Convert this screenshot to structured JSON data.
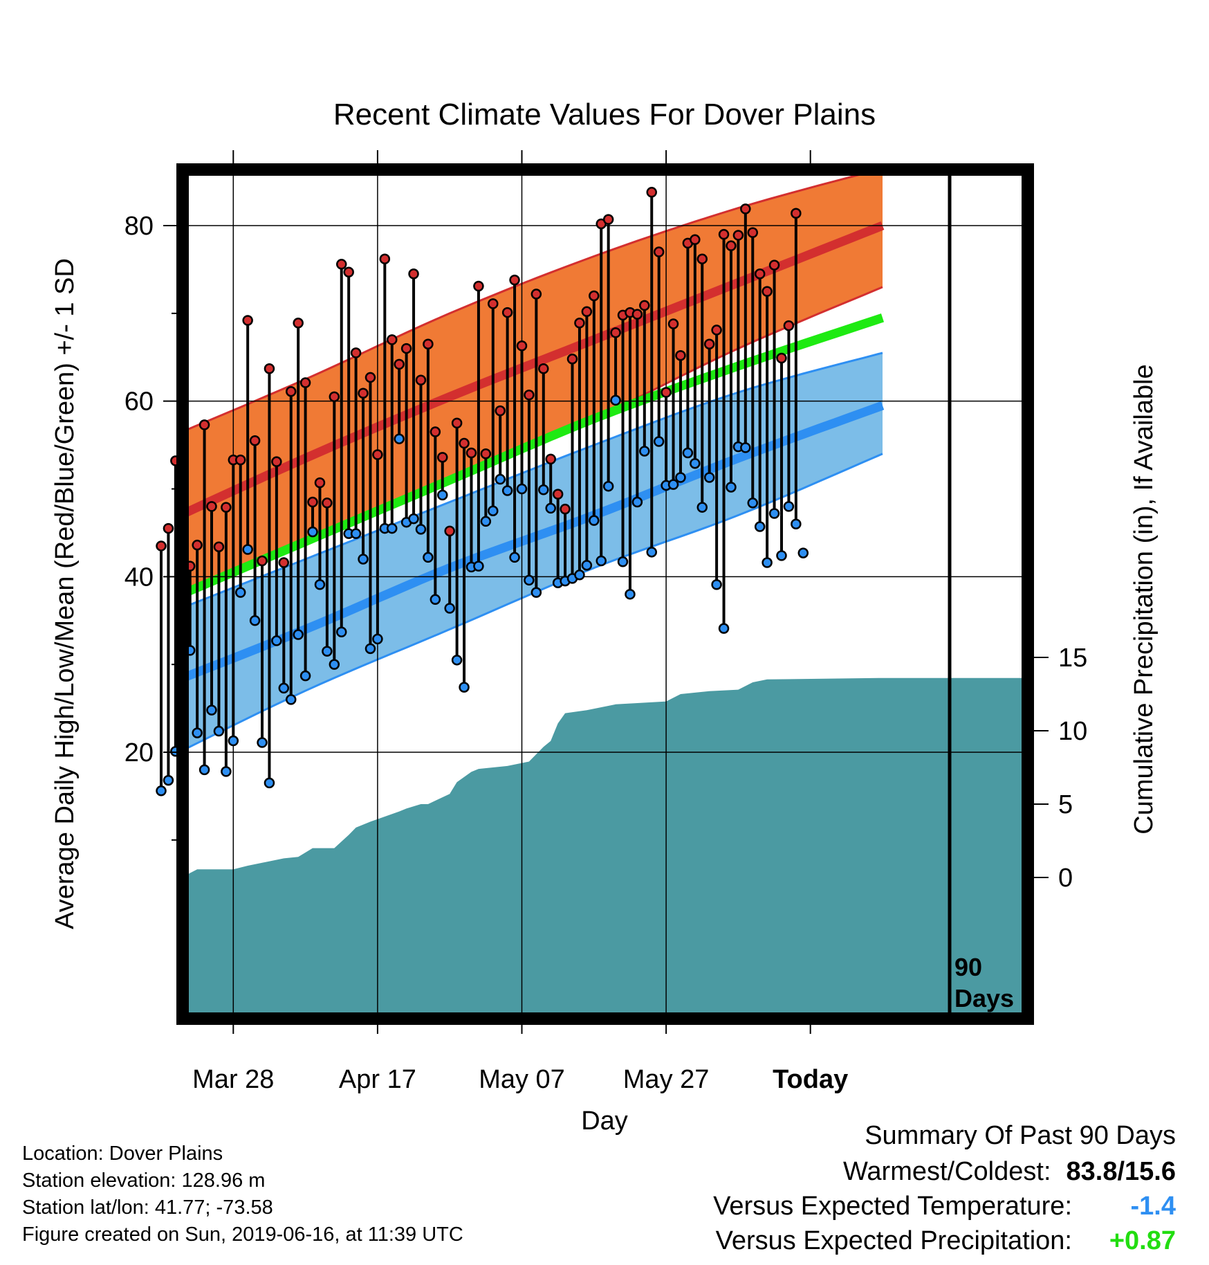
{
  "chart_data": {
    "type": "line",
    "title": "Recent Climate Values For Dover Plains",
    "xlabel": "Day",
    "ylabel": "Average Daily High/Low/Mean (Red/Blue/Green) +/- 1 SD",
    "y2label": "Cumulative Precipitation (in), If Available",
    "x_ticks": [
      "Mar 28",
      "Apr 17",
      "May 07",
      "May 27",
      "Today"
    ],
    "y_ticks": [
      "20",
      "40",
      "60",
      "80"
    ],
    "y2_ticks": [
      "0",
      "5",
      "10",
      "15"
    ],
    "y_range": [
      6,
      89
    ],
    "y2_range": [
      0,
      21
    ],
    "marker_label": [
      "90",
      "Days"
    ],
    "grid": true,
    "colors": {
      "high": "#d32f2f",
      "high_band": "#f07a35",
      "low": "#2e8ff2",
      "low_band": "#7cbde8",
      "mean": "#1eea12",
      "precip": "#4b9aa2"
    },
    "normal_high": {
      "x": [
        "2019-03-18",
        "2019-04-07",
        "2019-04-27",
        "2019-05-17",
        "2019-06-06",
        "2019-06-26"
      ],
      "mean": [
        46.0,
        53.5,
        60.5,
        67.0,
        73.5,
        80.0
      ],
      "lower": [
        37.0,
        44.0,
        51.0,
        58.0,
        66.0,
        73.0
      ],
      "upper": [
        55.5,
        62.5,
        70.0,
        76.5,
        82.0,
        86.5
      ]
    },
    "normal_mean": {
      "x": [
        "2019-03-18",
        "2019-04-07",
        "2019-04-27",
        "2019-05-17",
        "2019-06-06",
        "2019-06-26"
      ],
      "mean": [
        37.0,
        44.0,
        51.0,
        58.0,
        64.0,
        69.5
      ]
    },
    "normal_low": {
      "x": [
        "2019-03-18",
        "2019-04-07",
        "2019-04-27",
        "2019-05-17",
        "2019-06-06",
        "2019-06-26"
      ],
      "mean": [
        27.5,
        34.0,
        41.0,
        47.0,
        53.5,
        59.5
      ],
      "lower": [
        19.0,
        27.0,
        34.0,
        41.0,
        47.0,
        54.0
      ],
      "upper": [
        35.5,
        42.0,
        48.5,
        55.0,
        61.0,
        65.5
      ]
    },
    "daily": {
      "x": [
        "2019-03-18",
        "2019-03-19",
        "2019-03-20",
        "2019-03-21",
        "2019-03-22",
        "2019-03-23",
        "2019-03-24",
        "2019-03-25",
        "2019-03-26",
        "2019-03-27",
        "2019-03-28",
        "2019-03-29",
        "2019-03-30",
        "2019-03-31",
        "2019-04-01",
        "2019-04-02",
        "2019-04-03",
        "2019-04-04",
        "2019-04-05",
        "2019-04-06",
        "2019-04-07",
        "2019-04-08",
        "2019-04-09",
        "2019-04-10",
        "2019-04-11",
        "2019-04-12",
        "2019-04-13",
        "2019-04-14",
        "2019-04-15",
        "2019-04-16",
        "2019-04-17",
        "2019-04-18",
        "2019-04-19",
        "2019-04-20",
        "2019-04-21",
        "2019-04-22",
        "2019-04-23",
        "2019-04-24",
        "2019-04-25",
        "2019-04-26",
        "2019-04-27",
        "2019-04-28",
        "2019-04-29",
        "2019-04-30",
        "2019-05-01",
        "2019-05-02",
        "2019-05-03",
        "2019-05-04",
        "2019-05-05",
        "2019-05-06",
        "2019-05-07",
        "2019-05-08",
        "2019-05-09",
        "2019-05-10",
        "2019-05-11",
        "2019-05-12",
        "2019-05-13",
        "2019-05-14",
        "2019-05-15",
        "2019-05-16",
        "2019-05-17",
        "2019-05-18",
        "2019-05-19",
        "2019-05-20",
        "2019-05-21",
        "2019-05-22",
        "2019-05-23",
        "2019-05-24",
        "2019-05-25",
        "2019-05-26",
        "2019-05-27",
        "2019-05-28",
        "2019-05-29",
        "2019-05-30",
        "2019-05-31",
        "2019-06-01",
        "2019-06-02",
        "2019-06-03",
        "2019-06-04",
        "2019-06-05",
        "2019-06-06",
        "2019-06-07",
        "2019-06-08",
        "2019-06-09",
        "2019-06-10",
        "2019-06-11",
        "2019-06-12",
        "2019-06-13",
        "2019-06-14",
        "2019-06-15"
      ],
      "high": [
        43.5,
        45.5,
        53.2,
        43.7,
        41.2,
        43.6,
        57.3,
        48.0,
        43.4,
        47.9,
        53.3,
        53.3,
        69.2,
        55.5,
        41.8,
        63.7,
        53.1,
        41.6,
        61.1,
        68.9,
        62.1,
        48.5,
        50.7,
        48.4,
        60.5,
        75.6,
        74.7,
        65.5,
        60.9,
        62.7,
        53.9,
        76.2,
        67.0,
        64.2,
        66.0,
        74.5,
        62.4,
        66.5,
        56.5,
        53.6,
        45.2,
        57.5,
        55.2,
        54.1,
        73.1,
        54.0,
        71.1,
        58.9,
        70.1,
        73.8,
        66.3,
        60.7,
        72.2,
        63.7,
        53.4,
        49.4,
        47.7,
        64.8,
        68.9,
        70.2,
        72.0,
        80.2,
        80.7,
        67.8,
        69.8,
        70.1,
        69.9,
        70.9,
        83.8,
        77.0,
        61.0,
        68.8,
        65.2,
        78.0,
        78.4,
        76.2,
        66.5,
        68.1,
        79.0,
        77.7,
        78.9,
        81.9,
        79.2,
        74.5,
        72.5,
        75.5,
        64.9,
        68.6,
        81.4,
        null
      ],
      "low": [
        15.6,
        16.8,
        20.1,
        31.2,
        31.6,
        22.2,
        18.0,
        24.8,
        22.4,
        17.8,
        21.3,
        38.2,
        43.1,
        35.0,
        21.1,
        16.5,
        32.7,
        27.3,
        26.0,
        33.4,
        28.7,
        45.1,
        39.1,
        31.5,
        30.0,
        33.7,
        44.9,
        44.9,
        42.0,
        31.8,
        32.9,
        45.5,
        45.5,
        55.7,
        46.2,
        46.6,
        45.4,
        42.2,
        37.4,
        49.3,
        36.4,
        30.5,
        27.4,
        41.1,
        41.2,
        46.3,
        47.5,
        51.1,
        49.8,
        42.2,
        50.0,
        39.6,
        38.2,
        49.9,
        47.8,
        39.3,
        39.5,
        39.8,
        40.2,
        41.3,
        46.4,
        41.8,
        50.3,
        60.1,
        41.7,
        38.0,
        48.5,
        54.3,
        42.8,
        55.4,
        50.4,
        50.5,
        51.3,
        54.1,
        52.9,
        47.9,
        51.3,
        39.1,
        34.1,
        50.2,
        54.8,
        54.7,
        48.4,
        45.7,
        41.6,
        47.2,
        42.4,
        48.0,
        46.0,
        42.7
      ]
    },
    "precip": {
      "x": [
        "2019-03-18",
        "2019-03-21",
        "2019-03-22",
        "2019-03-23",
        "2019-03-28",
        "2019-03-30",
        "2019-04-01",
        "2019-04-04",
        "2019-04-06",
        "2019-04-08",
        "2019-04-11",
        "2019-04-13",
        "2019-04-14",
        "2019-04-16",
        "2019-04-20",
        "2019-04-21",
        "2019-04-23",
        "2019-04-24",
        "2019-04-27",
        "2019-04-28",
        "2019-04-30",
        "2019-05-01",
        "2019-05-05",
        "2019-05-08",
        "2019-05-10",
        "2019-05-11",
        "2019-05-12",
        "2019-05-13",
        "2019-05-16",
        "2019-05-20",
        "2019-05-27",
        "2019-05-29",
        "2019-06-02",
        "2019-06-06",
        "2019-06-08",
        "2019-06-10",
        "2019-06-26"
      ],
      "y": [
        0,
        0,
        0.3,
        0.55,
        0.55,
        0.8,
        1.0,
        1.3,
        1.4,
        2.0,
        2.0,
        2.9,
        3.4,
        3.8,
        4.5,
        4.7,
        5.0,
        5.0,
        5.7,
        6.5,
        7.2,
        7.4,
        7.6,
        7.9,
        8.9,
        9.3,
        10.5,
        11.2,
        11.4,
        11.8,
        12.0,
        12.5,
        12.7,
        12.8,
        13.3,
        13.5,
        13.6
      ]
    }
  },
  "footer": {
    "location": "Location: Dover Plains",
    "elevation": "Station elevation: 128.96 m",
    "latlon": "Station lat/lon: 41.77; -73.58",
    "created": "Figure created on Sun, 2019-06-16, at 11:39 UTC"
  },
  "summary": {
    "title": "Summary Of Past 90 Days",
    "warmest_label": "Warmest/Coldest:",
    "warmest_value": "83.8/15.6",
    "temp_label": "Versus Expected Temperature:",
    "temp_value": "-1.4",
    "temp_color": "#2e8ff2",
    "precip_label": "Versus Expected Precipitation:",
    "precip_value": "+0.87",
    "precip_color": "#22dd11"
  }
}
